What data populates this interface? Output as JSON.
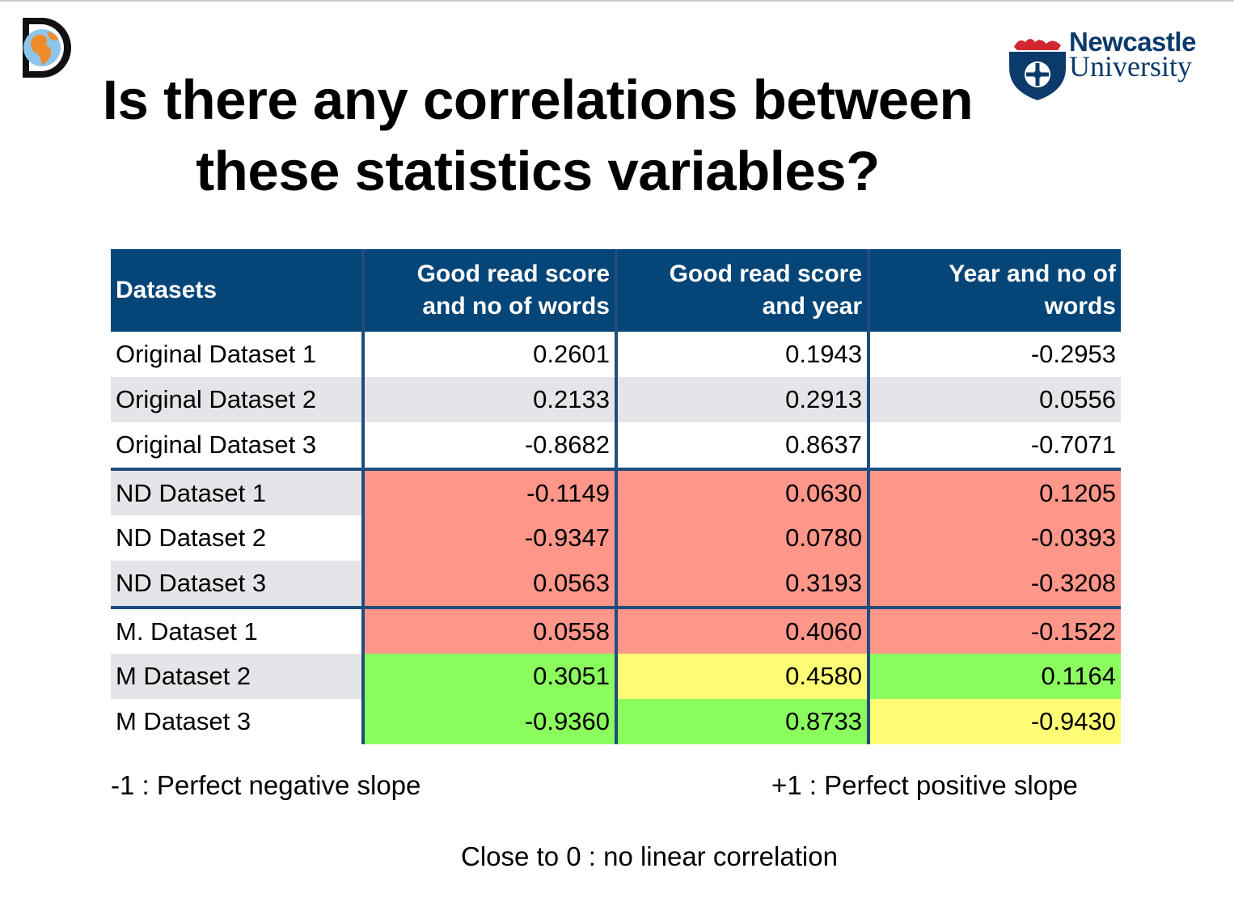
{
  "title": "Is there any correlations between these statistics variables?",
  "title_line1": "Is there any correlations between",
  "title_line2": "these statistics variables?",
  "logos": {
    "app_icon": "D",
    "university_line1": "Newcastle",
    "university_line2": "University"
  },
  "table": {
    "headers": [
      "Datasets",
      "Good read score and no of words",
      "Good read score and year",
      "Year and no of words"
    ],
    "header_lines": [
      [
        "Datasets"
      ],
      [
        "Good read score",
        "and no of words"
      ],
      [
        "Good read score",
        "and year"
      ],
      [
        "Year and no of",
        "words"
      ]
    ],
    "rows": [
      {
        "name": "Original Dataset 1",
        "values": [
          "0.2601",
          "0.1943",
          "-0.2953"
        ],
        "highlight": [
          "",
          "",
          ""
        ]
      },
      {
        "name": "Original Dataset 2",
        "values": [
          "0.2133",
          "0.2913",
          "0.0556"
        ],
        "highlight": [
          "",
          "",
          ""
        ]
      },
      {
        "name": "Original Dataset 3",
        "values": [
          "-0.8682",
          "0.8637",
          "-0.7071"
        ],
        "highlight": [
          "",
          "",
          ""
        ]
      },
      {
        "name": "ND Dataset 1",
        "values": [
          "-0.1149",
          "0.0630",
          "0.1205"
        ],
        "highlight": [
          "red",
          "red",
          "red"
        ]
      },
      {
        "name": "ND Dataset 2",
        "values": [
          "-0.9347",
          "0.0780",
          "-0.0393"
        ],
        "highlight": [
          "red",
          "red",
          "red"
        ]
      },
      {
        "name": "ND Dataset 3",
        "values": [
          "0.0563",
          "0.3193",
          "-0.3208"
        ],
        "highlight": [
          "red",
          "red",
          "red"
        ]
      },
      {
        "name": "M. Dataset 1",
        "values": [
          "0.0558",
          "0.4060",
          "-0.1522"
        ],
        "highlight": [
          "red",
          "red",
          "red"
        ]
      },
      {
        "name": "M Dataset 2",
        "values": [
          "0.3051",
          "0.4580",
          "0.1164"
        ],
        "highlight": [
          "green",
          "yellow",
          "green"
        ]
      },
      {
        "name": "M Dataset 3",
        "values": [
          "-0.9360",
          "0.8733",
          "-0.9430"
        ],
        "highlight": [
          "green",
          "green",
          "yellow"
        ]
      }
    ]
  },
  "legend": {
    "negative": "-1  : Perfect negative slope",
    "positive": "+1  : Perfect positive slope",
    "zero": "Close to 0 : no linear correlation"
  },
  "colors": {
    "header_bg": "#054577",
    "red": "#fe968a",
    "green": "#8afc5e",
    "yellow": "#fefc74",
    "stripe": "#e4e5e9"
  }
}
